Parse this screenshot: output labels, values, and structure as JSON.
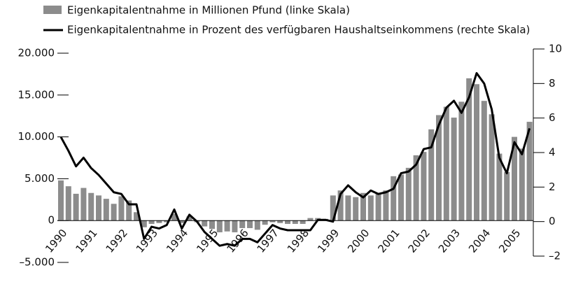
{
  "chart_data": {
    "type": "bar+line",
    "series": [
      {
        "name": "Eigenkapitalentnahme in Millionen Pfund (linke Skala)",
        "color": "#8c8c8c",
        "type": "bar",
        "values": [
          4800,
          4100,
          3200,
          3900,
          3300,
          3000,
          2600,
          2000,
          2900,
          2400,
          1000,
          -800,
          -400,
          -300,
          -200,
          800,
          -300,
          500,
          -200,
          -700,
          -1000,
          -1400,
          -1300,
          -1400,
          -900,
          -900,
          -1100,
          -500,
          -200,
          -300,
          -400,
          -400,
          -400,
          300,
          300,
          200,
          3000,
          3600,
          3000,
          2800,
          3300,
          3000,
          3300,
          3600,
          5300,
          5500,
          6300,
          7800,
          8200,
          10900,
          12600,
          13600,
          12300,
          14200,
          17000,
          16300,
          14300,
          12700,
          8000,
          5800,
          10000,
          8600,
          11800
        ]
      },
      {
        "name": "Eigenkapitalentnahme in Prozent des verfügbaren Haushaltseinkommens (rechte Skala)",
        "color": "#000000",
        "type": "line",
        "axis": "y2",
        "values": [
          4.9,
          4.1,
          3.2,
          3.7,
          3.1,
          2.7,
          2.2,
          1.7,
          1.6,
          1.0,
          1.0,
          -1.0,
          -0.3,
          -0.4,
          -0.2,
          0.7,
          -0.4,
          0.4,
          0,
          -0.6,
          -1.0,
          -1.4,
          -1.3,
          -1.4,
          -1.0,
          -1.0,
          -1.2,
          -0.7,
          -0.2,
          -0.4,
          -0.5,
          -0.5,
          -0.5,
          -0.5,
          0.1,
          0.1,
          0,
          1.6,
          2.1,
          1.7,
          1.4,
          1.8,
          1.6,
          1.7,
          1.9,
          2.8,
          2.9,
          3.3,
          4.2,
          4.3,
          5.6,
          6.6,
          7.0,
          6.3,
          7.2,
          8.6,
          8.0,
          6.5,
          3.7,
          2.8,
          4.6,
          3.9,
          5.4
        ]
      }
    ],
    "categories": [
      "1990",
      null,
      null,
      null,
      "1991",
      null,
      null,
      null,
      "1992",
      null,
      null,
      null,
      "1993",
      null,
      null,
      null,
      "1994",
      null,
      null,
      null,
      "1995",
      null,
      null,
      null,
      "1996",
      null,
      null,
      null,
      "1997",
      null,
      null,
      null,
      "1998",
      null,
      null,
      null,
      "1999",
      null,
      null,
      null,
      "2000",
      null,
      null,
      null,
      "2001",
      null,
      null,
      null,
      "2002",
      null,
      null,
      null,
      "2003",
      null,
      null,
      null,
      "2004",
      null,
      null,
      null,
      "2005",
      null,
      null
    ],
    "ylim": [
      -5000,
      20000
    ],
    "yticks": [
      {
        "value": -5000,
        "label": "–5.000"
      },
      0,
      {
        "value": 5000,
        "label": "5.000"
      },
      {
        "value": 10000,
        "label": "10.000"
      },
      {
        "value": 15000,
        "label": "15.000"
      },
      {
        "value": 20000,
        "label": "20.000"
      }
    ],
    "y2lim": [
      -2,
      10
    ],
    "y2ticks": [
      {
        "value": -2,
        "label": "–2"
      },
      0,
      2,
      4,
      6,
      8,
      10
    ]
  }
}
